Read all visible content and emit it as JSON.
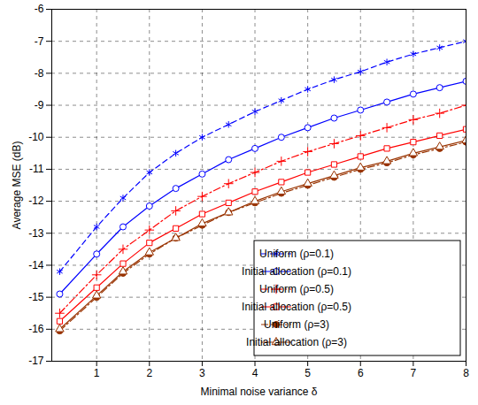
{
  "chart_data": {
    "type": "line",
    "x_label": "Minimal noise variance δ",
    "y_label": "Average MSE (dB)",
    "x": [
      0.3,
      1,
      1.5,
      2,
      2.5,
      3,
      3.5,
      4,
      4.5,
      5,
      5.5,
      6,
      6.5,
      7,
      7.5,
      8
    ],
    "xlim": [
      0.15,
      8
    ],
    "ylim": [
      -17,
      -6
    ],
    "xticks": [
      1,
      2,
      3,
      4,
      5,
      6,
      7,
      8
    ],
    "yticks": [
      -17,
      -16,
      -15,
      -14,
      -13,
      -12,
      -11,
      -10,
      -9,
      -8,
      -7,
      -6
    ],
    "grid": true,
    "legend": "lower right",
    "series": [
      {
        "name": "Uniform (ρ=0.1)",
        "color": "#0000ff",
        "marker": "star",
        "line_style": "dashed",
        "values": [
          -14.2,
          -12.8,
          -11.9,
          -11.1,
          -10.5,
          -10.0,
          -9.6,
          -9.2,
          -8.85,
          -8.5,
          -8.2,
          -7.95,
          -7.65,
          -7.4,
          -7.2,
          -7.0
        ]
      },
      {
        "name": "Initial allocation (ρ=0.1)",
        "color": "#0000ff",
        "marker": "circle",
        "line_style": "solid",
        "values": [
          -14.9,
          -13.65,
          -12.8,
          -12.15,
          -11.6,
          -11.15,
          -10.7,
          -10.35,
          -10.0,
          -9.7,
          -9.4,
          -9.15,
          -8.9,
          -8.65,
          -8.45,
          -8.25
        ]
      },
      {
        "name": "Uniform (ρ=0.5)",
        "color": "#ff0000",
        "marker": "plus",
        "line_style": "dashdot",
        "values": [
          -15.5,
          -14.3,
          -13.5,
          -12.9,
          -12.3,
          -11.85,
          -11.45,
          -11.1,
          -10.75,
          -10.45,
          -10.2,
          -9.95,
          -9.7,
          -9.45,
          -9.25,
          -9.0
        ]
      },
      {
        "name": "Initial allocation (ρ=0.5)",
        "color": "#ff0000",
        "marker": "square",
        "line_style": "solid",
        "values": [
          -15.75,
          -14.7,
          -13.95,
          -13.3,
          -12.85,
          -12.4,
          -12.05,
          -11.7,
          -11.4,
          -11.1,
          -10.85,
          -10.6,
          -10.35,
          -10.15,
          -9.95,
          -9.75
        ]
      },
      {
        "name": "Uniform (ρ=3)",
        "color": "#993300",
        "marker": "dot",
        "line_style": "dashdot",
        "values": [
          -16.05,
          -15.0,
          -14.25,
          -13.65,
          -13.15,
          -12.75,
          -12.35,
          -12.05,
          -11.75,
          -11.5,
          -11.25,
          -11.0,
          -10.8,
          -10.55,
          -10.35,
          -10.15
        ]
      },
      {
        "name": "Initial allocation (ρ=3)",
        "color": "#993300",
        "marker": "triangle",
        "line_style": "solid",
        "values": [
          -16.0,
          -14.95,
          -14.2,
          -13.6,
          -13.15,
          -12.7,
          -12.35,
          -12.0,
          -11.7,
          -11.45,
          -11.2,
          -10.95,
          -10.75,
          -10.5,
          -10.3,
          -10.1
        ]
      }
    ]
  }
}
